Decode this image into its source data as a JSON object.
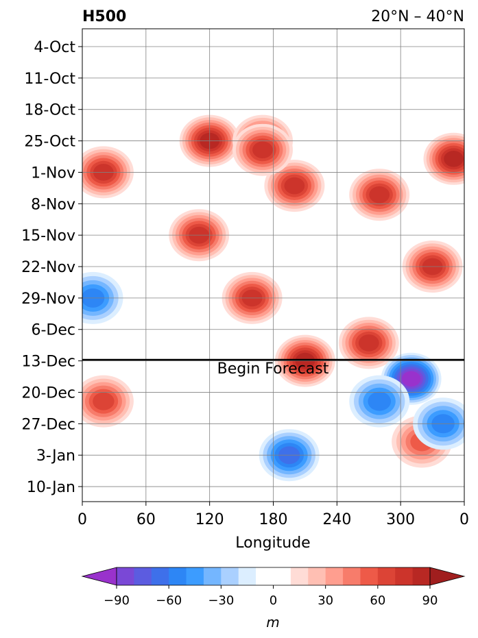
{
  "chart_data": {
    "type": "heatmap",
    "title_left": "H500",
    "title_right": "20°N – 40°N",
    "xlabel": "Longitude",
    "x_ticks": [
      "0",
      "60",
      "120",
      "180",
      "240",
      "300",
      "0"
    ],
    "y_ticks": [
      "4-Oct",
      "11-Oct",
      "18-Oct",
      "25-Oct",
      "1-Nov",
      "8-Nov",
      "15-Nov",
      "22-Nov",
      "29-Nov",
      "6-Dec",
      "13-Dec",
      "20-Dec",
      "27-Dec",
      "3-Jan",
      "10-Jan"
    ],
    "annotation": "Begin Forecast",
    "forecast_start": "13-Dec",
    "colorbar": {
      "label": "m",
      "levels": [
        -100,
        -90,
        -80,
        -70,
        -60,
        -50,
        -40,
        -30,
        -20,
        -10,
        0,
        10,
        20,
        30,
        40,
        50,
        60,
        70,
        80,
        90,
        100
      ],
      "tick_labels": [
        "−90",
        "−60",
        "−30",
        "0",
        "30",
        "60",
        "90"
      ],
      "tick_values": [
        -90,
        -60,
        -30,
        0,
        30,
        60,
        90
      ],
      "colors": [
        "#9932cc",
        "#7a48d6",
        "#5c5ce0",
        "#3e70ea",
        "#2d86f5",
        "#3c9cff",
        "#74b6ff",
        "#aad0ff",
        "#dceeff",
        "#ffffff",
        "#ffffff",
        "#ffdcd6",
        "#ffbfb3",
        "#ff9e8f",
        "#f77c6b",
        "#ee5a48",
        "#dc4436",
        "#cc342b",
        "#b82823",
        "#a01e1e"
      ],
      "extend": "both"
    },
    "anomaly_features": [
      {
        "lon": 20,
        "date": "1-Nov",
        "value": 70
      },
      {
        "lon": 120,
        "date": "25-Oct",
        "value": 80
      },
      {
        "lon": 170,
        "date": "25-Oct",
        "value": 75
      },
      {
        "lon": 200,
        "date": "4-Nov",
        "value": 70
      },
      {
        "lon": 350,
        "date": "29-Oct",
        "value": 85
      },
      {
        "lon": 280,
        "date": "6-Nov",
        "value": 70
      },
      {
        "lon": 330,
        "date": "22-Nov",
        "value": 70
      },
      {
        "lon": 110,
        "date": "15-Nov",
        "value": 70
      },
      {
        "lon": 160,
        "date": "29-Nov",
        "value": 75
      },
      {
        "lon": 210,
        "date": "13-Dec",
        "value": 80
      },
      {
        "lon": 270,
        "date": "9-Dec",
        "value": 70
      },
      {
        "lon": 20,
        "date": "22-Dec",
        "value": 60
      },
      {
        "lon": 320,
        "date": "31-Dec",
        "value": 50
      },
      {
        "lon": 310,
        "date": "17-Dec",
        "value": -95
      },
      {
        "lon": 280,
        "date": "22-Dec",
        "value": -55
      },
      {
        "lon": 340,
        "date": "27-Dec",
        "value": -50
      },
      {
        "lon": 195,
        "date": "3-Jan",
        "value": -60
      },
      {
        "lon": 170,
        "date": "27-Oct",
        "value": 70
      },
      {
        "lon": 10,
        "date": "29-Nov",
        "value": -50
      }
    ]
  }
}
